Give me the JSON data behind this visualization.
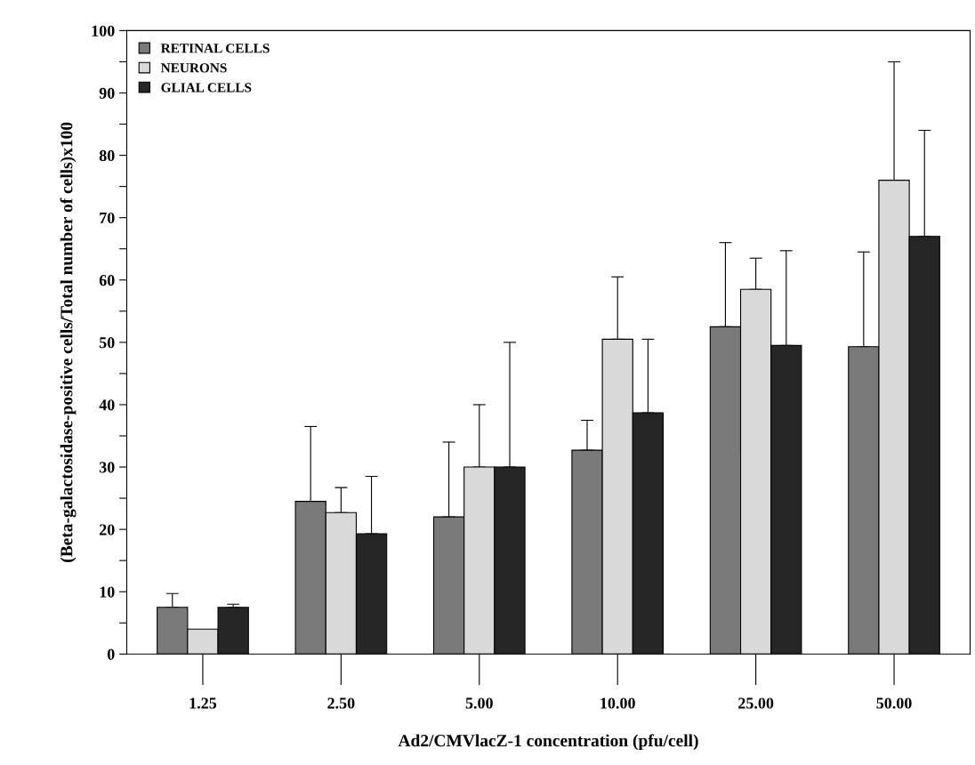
{
  "chart_data": {
    "type": "bar",
    "xlabel": "Ad2/CMVlacZ-1 concentration (pfu/cell)",
    "ylabel": "(Beta-galactosidase-positive cells/Total number of cells)x100",
    "categories": [
      "1.25",
      "2.50",
      "5.00",
      "10.00",
      "25.00",
      "50.00"
    ],
    "series": [
      {
        "name": "RETINAL CELLS",
        "color": "#7a7a7a",
        "values": [
          7.5,
          24.5,
          22,
          32.7,
          52.5,
          49.3
        ],
        "errors": [
          [
            7.5,
            9.7
          ],
          [
            24.5,
            36.5
          ],
          [
            22,
            34
          ],
          [
            32.7,
            37.5
          ],
          [
            52.5,
            66
          ],
          [
            49.3,
            64.5
          ]
        ]
      },
      {
        "name": "NEURONS",
        "color": "#d9d9d9",
        "values": [
          4,
          22.7,
          30,
          50.5,
          58.5,
          76
        ],
        "errors": [
          null,
          [
            22.7,
            26.7
          ],
          [
            30,
            40
          ],
          [
            50.5,
            60.5
          ],
          [
            58.5,
            63.5
          ],
          [
            76,
            95
          ]
        ]
      },
      {
        "name": "GLIAL CELLS",
        "color": "#262626",
        "values": [
          7.5,
          19.3,
          30,
          38.7,
          49.5,
          67
        ],
        "errors": [
          [
            7.5,
            8
          ],
          [
            19.3,
            28.5
          ],
          [
            30,
            50
          ],
          [
            38.7,
            50.5
          ],
          [
            49.5,
            64.7
          ],
          [
            67,
            84
          ]
        ]
      }
    ],
    "ylim": [
      0,
      100
    ],
    "yticks": [
      0,
      {
        "value": 5,
        "label": null
      },
      10,
      {
        "value": 15,
        "label": null
      },
      20,
      {
        "value": 25,
        "label": null
      },
      30,
      {
        "value": 35,
        "label": null
      },
      40,
      {
        "value": 45,
        "label": null
      },
      50,
      {
        "value": 55,
        "label": null
      },
      60,
      {
        "value": 65,
        "label": null
      },
      70,
      {
        "value": 75,
        "label": null
      },
      80,
      {
        "value": 85,
        "label": null
      },
      90,
      {
        "value": 95,
        "label": null
      },
      100
    ],
    "legend": "top left",
    "grid": false
  }
}
